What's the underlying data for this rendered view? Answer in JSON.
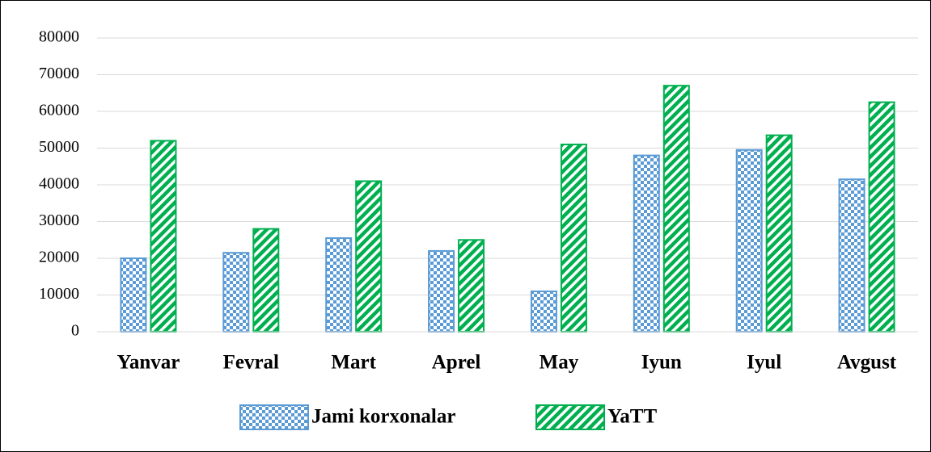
{
  "chart_data": {
    "type": "bar",
    "categories": [
      "Yanvar",
      "Fevral",
      "Mart",
      "Aprel",
      "May",
      "Iyun",
      "Iyul",
      "Avgust"
    ],
    "series": [
      {
        "name": "Jami korxonalar",
        "color": "#5b9bd5",
        "pattern": "checker",
        "values": [
          20000,
          21500,
          25500,
          22000,
          11000,
          48000,
          49500,
          41500
        ]
      },
      {
        "name": "YaTT",
        "color": "#00b050",
        "pattern": "diagonal",
        "values": [
          52000,
          28000,
          41000,
          25000,
          51000,
          67000,
          53500,
          62500
        ]
      }
    ],
    "ylim": [
      0,
      80000
    ],
    "yticks": [
      0,
      10000,
      20000,
      30000,
      40000,
      50000,
      60000,
      70000,
      80000
    ],
    "grid": true,
    "legend": "bottom"
  }
}
